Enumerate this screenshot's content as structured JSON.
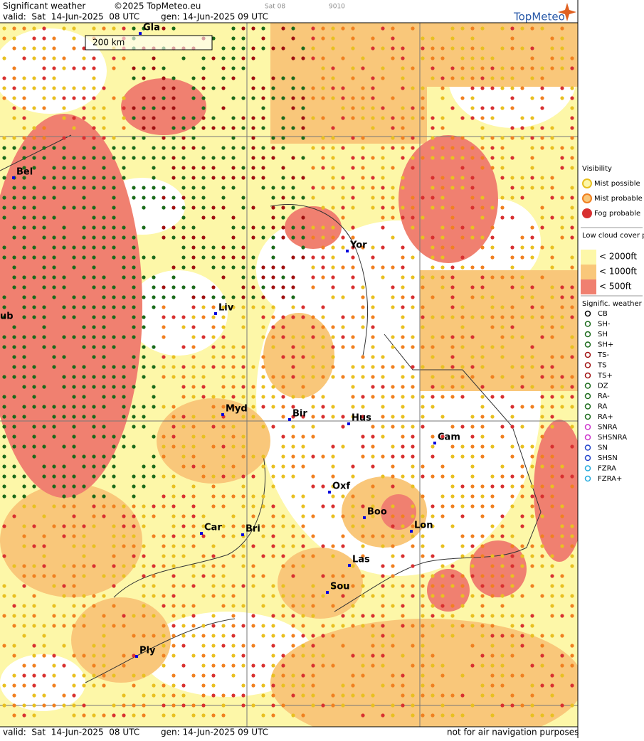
{
  "header": {
    "title": "Significant weather",
    "copyright": "©2025 TopMeteo.eu",
    "run": "Sat 08",
    "code": "9010",
    "valid": "valid:  Sat  14-Jun-2025  08 UTC",
    "gen": "gen: 14-Jun-2025 09 UTC",
    "logo": "TopMeteo"
  },
  "map": {
    "scale": "200 km",
    "cities": [
      "Gla",
      "Bel",
      "Yor",
      "Liv",
      "ub",
      "Myd",
      "Bir",
      "Hus",
      "Cam",
      "Oxf",
      "Boo",
      "Lon",
      "Car",
      "Bri",
      "Las",
      "Sou",
      "Ply"
    ]
  },
  "legend": {
    "visibility": {
      "title": "Visibility",
      "items": [
        "Mist possible",
        "Mist probable",
        "Fog probable"
      ]
    },
    "low_cloud": {
      "title": "Low cloud cover probable",
      "items": [
        "< 2000ft",
        "< 1000ft",
        "<  500ft"
      ]
    },
    "weather": {
      "title": "Signific. weather",
      "items": [
        "CB",
        "SH-",
        "SH",
        "SH+",
        "TS-",
        "TS",
        "TS+",
        "DZ",
        "RA-",
        "RA",
        "RA+",
        "SNRA",
        "SHSNRA",
        "SN",
        "SHSN",
        "FZRA",
        "FZRA+"
      ]
    }
  },
  "footer": {
    "valid": "valid:  Sat  14-Jun-2025  08 UTC",
    "gen": "gen: 14-Jun-2025 09 UTC",
    "note": "not for air navigation purposes"
  }
}
